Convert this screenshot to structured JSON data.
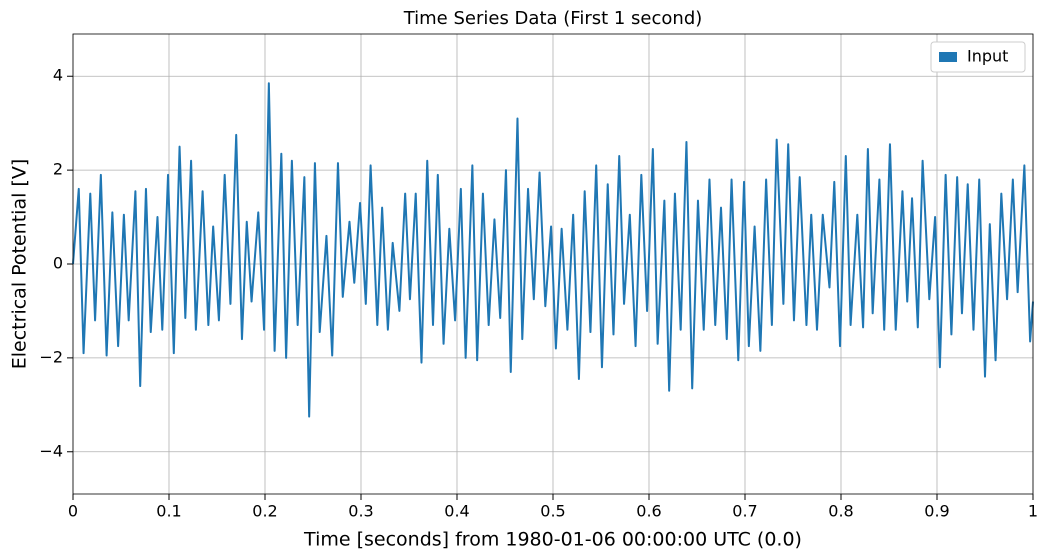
{
  "chart_data": {
    "type": "line",
    "title": "Time Series Data (First 1 second)",
    "xlabel": "Time [seconds] from 1980-01-06 00:00:00 UTC (0.0)",
    "ylabel": "Electrical Potential [V]",
    "xlim": [
      0,
      1
    ],
    "xticks": [
      0,
      0.1,
      0.2,
      0.3,
      0.4,
      0.5,
      0.6,
      0.7,
      0.8,
      0.9,
      1
    ],
    "ylim": [
      -4.9,
      4.9
    ],
    "yticks": [
      {
        "value": -4,
        "label": "−4"
      },
      {
        "value": -2,
        "label": "−2"
      },
      0,
      2,
      4
    ],
    "grid": true,
    "legend": "upper right",
    "x": [
      0,
      0.006,
      0.011,
      0.018,
      0.023,
      0.029,
      0.035,
      0.041,
      0.047,
      0.053,
      0.058,
      0.065,
      0.07,
      0.076,
      0.081,
      0.088,
      0.093,
      0.099,
      0.105,
      0.111,
      0.117,
      0.123,
      0.128,
      0.135,
      0.141,
      0.146,
      0.152,
      0.158,
      0.164,
      0.17,
      0.176,
      0.181,
      0.186,
      0.193,
      0.199,
      0.204,
      0.21,
      0.217,
      0.222,
      0.228,
      0.234,
      0.241,
      0.246,
      0.252,
      0.257,
      0.264,
      0.27,
      0.276,
      0.281,
      0.288,
      0.293,
      0.299,
      0.305,
      0.31,
      0.317,
      0.322,
      0.328,
      0.333,
      0.34,
      0.346,
      0.351,
      0.357,
      0.363,
      0.369,
      0.375,
      0.38,
      0.386,
      0.392,
      0.398,
      0.404,
      0.409,
      0.416,
      0.421,
      0.427,
      0.433,
      0.439,
      0.445,
      0.451,
      0.456,
      0.463,
      0.468,
      0.474,
      0.48,
      0.486,
      0.492,
      0.498,
      0.503,
      0.509,
      0.515,
      0.521,
      0.527,
      0.533,
      0.539,
      0.545,
      0.551,
      0.557,
      0.563,
      0.569,
      0.574,
      0.58,
      0.586,
      0.592,
      0.598,
      0.604,
      0.609,
      0.616,
      0.621,
      0.627,
      0.633,
      0.639,
      0.645,
      0.651,
      0.657,
      0.663,
      0.669,
      0.675,
      0.681,
      0.686,
      0.693,
      0.699,
      0.704,
      0.71,
      0.716,
      0.722,
      0.728,
      0.733,
      0.74,
      0.745,
      0.751,
      0.757,
      0.764,
      0.769,
      0.775,
      0.781,
      0.788,
      0.793,
      0.799,
      0.805,
      0.81,
      0.817,
      0.823,
      0.828,
      0.833,
      0.84,
      0.845,
      0.851,
      0.857,
      0.864,
      0.869,
      0.874,
      0.88,
      0.885,
      0.892,
      0.898,
      0.903,
      0.909,
      0.915,
      0.921,
      0.926,
      0.932,
      0.938,
      0.944,
      0.95,
      0.955,
      0.961,
      0.967,
      0.973,
      0.979,
      0.984,
      0.991,
      0.997,
      1
    ],
    "series": [
      {
        "name": "Input",
        "color": "#1f77b4",
        "values": [
          0,
          1.6,
          -1.9,
          1.5,
          -1.2,
          1.9,
          -1.95,
          1.1,
          -1.75,
          1.05,
          -1.2,
          1.55,
          -2.6,
          1.6,
          -1.45,
          1.0,
          -1.4,
          1.9,
          -1.9,
          2.5,
          -1.15,
          2.2,
          -1.4,
          1.55,
          -1.3,
          0.8,
          -1.2,
          1.9,
          -0.85,
          2.75,
          -1.6,
          0.9,
          -0.8,
          1.1,
          -1.4,
          3.85,
          -1.85,
          2.35,
          -2.0,
          2.2,
          -1.3,
          1.85,
          -3.25,
          2.15,
          -1.45,
          0.6,
          -1.95,
          2.15,
          -0.7,
          0.9,
          -0.4,
          1.3,
          -0.85,
          2.1,
          -1.3,
          1.2,
          -1.4,
          0.45,
          -1.0,
          1.5,
          -0.75,
          1.5,
          -2.1,
          2.2,
          -1.3,
          1.9,
          -1.7,
          0.75,
          -1.2,
          1.6,
          -2.0,
          2.1,
          -2.05,
          1.5,
          -1.3,
          0.95,
          -1.15,
          2.0,
          -2.3,
          3.1,
          -1.6,
          1.6,
          -0.75,
          1.95,
          -0.9,
          0.8,
          -1.8,
          0.75,
          -1.4,
          1.05,
          -2.45,
          1.55,
          -1.45,
          2.1,
          -2.2,
          1.7,
          -1.5,
          2.3,
          -0.85,
          1.05,
          -1.75,
          1.9,
          -1.0,
          2.45,
          -1.7,
          1.35,
          -2.7,
          1.5,
          -1.4,
          2.6,
          -2.65,
          1.35,
          -1.4,
          1.8,
          -1.3,
          1.2,
          -1.6,
          1.8,
          -2.05,
          1.75,
          -1.75,
          0.8,
          -1.85,
          1.8,
          -1.3,
          2.65,
          -0.85,
          2.55,
          -1.2,
          1.85,
          -1.3,
          1.05,
          -1.4,
          1.05,
          -0.5,
          1.75,
          -1.75,
          2.3,
          -1.3,
          1.05,
          -1.35,
          2.45,
          -1.05,
          1.8,
          -1.4,
          2.55,
          -1.4,
          1.55,
          -0.8,
          1.4,
          -1.35,
          2.2,
          -0.75,
          1.0,
          -2.2,
          1.9,
          -1.5,
          1.85,
          -1.05,
          1.7,
          -1.4,
          1.8,
          -2.4,
          0.85,
          -2.05,
          1.5,
          -0.75,
          1.8,
          -0.6,
          2.1,
          -1.65,
          -0.8
        ]
      }
    ]
  }
}
